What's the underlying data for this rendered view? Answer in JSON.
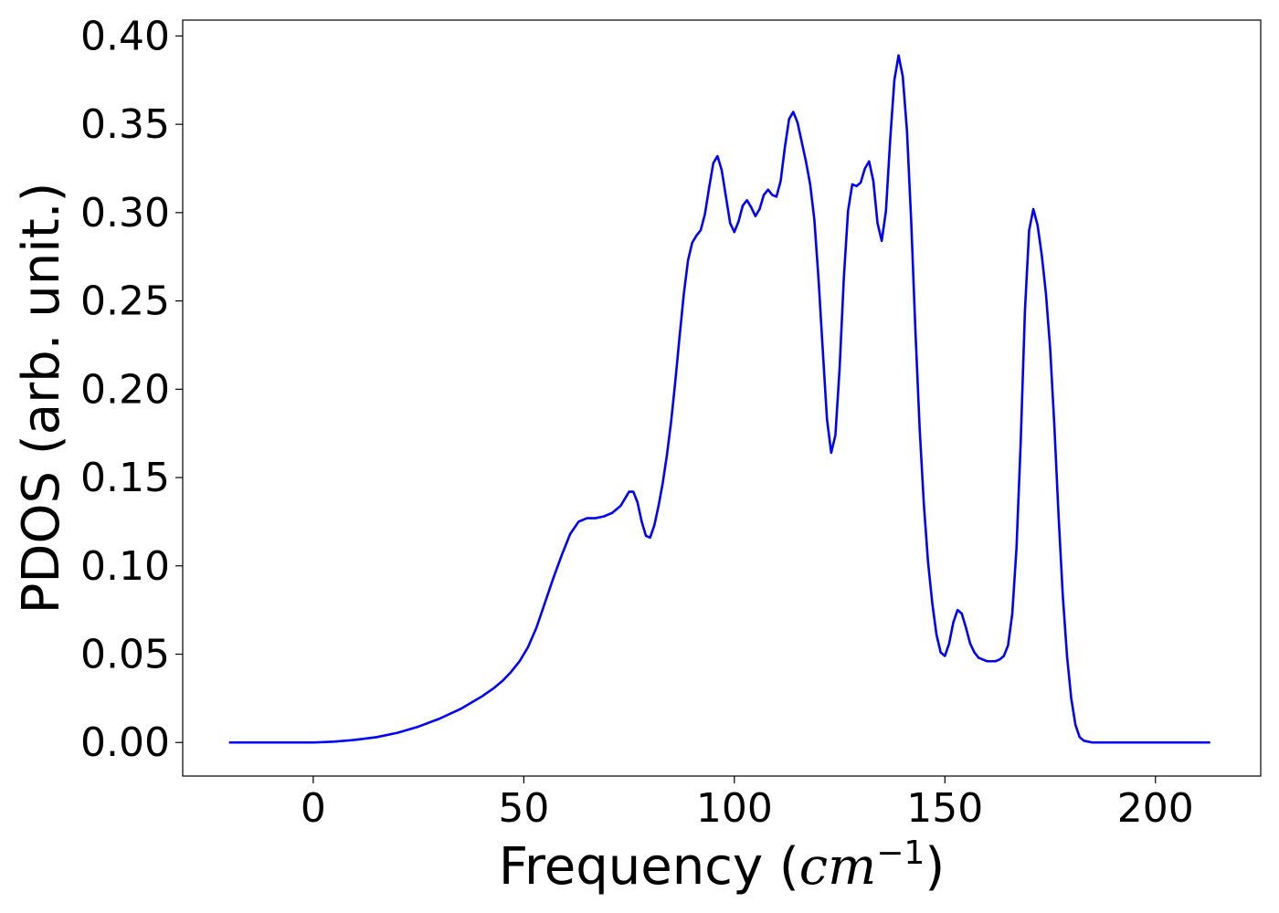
{
  "chart_data": {
    "type": "line",
    "title": "",
    "xlabel": "Frequency (",
    "xlabel_math": "cm",
    "xlabel_sup": "−1",
    "xlabel_close": ")",
    "ylabel": "PDOS (arb. unit.)",
    "xlim": [
      -31,
      225
    ],
    "ylim": [
      -0.019,
      0.409
    ],
    "xticks": [
      0,
      50,
      100,
      150,
      200
    ],
    "xtick_labels": [
      "0",
      "50",
      "100",
      "150",
      "200"
    ],
    "yticks": [
      0.0,
      0.05,
      0.1,
      0.15,
      0.2,
      0.25,
      0.3,
      0.35,
      0.4
    ],
    "ytick_labels": [
      "0.00",
      "0.05",
      "0.10",
      "0.15",
      "0.20",
      "0.25",
      "0.30",
      "0.35",
      "0.40"
    ],
    "grid": false,
    "series": [
      {
        "color": "#0000ff",
        "points": [
          [
            -20,
            0.0
          ],
          [
            0,
            0.0
          ],
          [
            5,
            0.0005
          ],
          [
            10,
            0.0015
          ],
          [
            15,
            0.003
          ],
          [
            20,
            0.0055
          ],
          [
            25,
            0.009
          ],
          [
            30,
            0.0135
          ],
          [
            35,
            0.019
          ],
          [
            40,
            0.026
          ],
          [
            43,
            0.031
          ],
          [
            45,
            0.035
          ],
          [
            47,
            0.04
          ],
          [
            49,
            0.046
          ],
          [
            51,
            0.054
          ],
          [
            53,
            0.065
          ],
          [
            55,
            0.079
          ],
          [
            57,
            0.093
          ],
          [
            59,
            0.106
          ],
          [
            61,
            0.118
          ],
          [
            63,
            0.125
          ],
          [
            65,
            0.127
          ],
          [
            67,
            0.127
          ],
          [
            69,
            0.128
          ],
          [
            71,
            0.13
          ],
          [
            73,
            0.134
          ],
          [
            75,
            0.142
          ],
          [
            76,
            0.142
          ],
          [
            77,
            0.136
          ],
          [
            78,
            0.125
          ],
          [
            79,
            0.117
          ],
          [
            80,
            0.116
          ],
          [
            81,
            0.123
          ],
          [
            82,
            0.134
          ],
          [
            83,
            0.147
          ],
          [
            84,
            0.163
          ],
          [
            85,
            0.182
          ],
          [
            86,
            0.205
          ],
          [
            87,
            0.23
          ],
          [
            88,
            0.254
          ],
          [
            89,
            0.273
          ],
          [
            90,
            0.283
          ],
          [
            91,
            0.287
          ],
          [
            92,
            0.29
          ],
          [
            93,
            0.299
          ],
          [
            94,
            0.314
          ],
          [
            95,
            0.328
          ],
          [
            96,
            0.332
          ],
          [
            97,
            0.324
          ],
          [
            98,
            0.309
          ],
          [
            99,
            0.294
          ],
          [
            100,
            0.289
          ],
          [
            101,
            0.295
          ],
          [
            102,
            0.304
          ],
          [
            103,
            0.307
          ],
          [
            104,
            0.303
          ],
          [
            105,
            0.298
          ],
          [
            106,
            0.302
          ],
          [
            107,
            0.31
          ],
          [
            108,
            0.313
          ],
          [
            109,
            0.31
          ],
          [
            110,
            0.309
          ],
          [
            111,
            0.318
          ],
          [
            112,
            0.337
          ],
          [
            113,
            0.353
          ],
          [
            114,
            0.357
          ],
          [
            115,
            0.351
          ],
          [
            116,
            0.34
          ],
          [
            117,
            0.329
          ],
          [
            118,
            0.316
          ],
          [
            119,
            0.296
          ],
          [
            120,
            0.262
          ],
          [
            121,
            0.222
          ],
          [
            122,
            0.183
          ],
          [
            123,
            0.164
          ],
          [
            124,
            0.174
          ],
          [
            125,
            0.212
          ],
          [
            126,
            0.263
          ],
          [
            127,
            0.301
          ],
          [
            128,
            0.316
          ],
          [
            129,
            0.315
          ],
          [
            130,
            0.317
          ],
          [
            131,
            0.325
          ],
          [
            132,
            0.329
          ],
          [
            133,
            0.318
          ],
          [
            134,
            0.294
          ],
          [
            135,
            0.284
          ],
          [
            136,
            0.301
          ],
          [
            137,
            0.341
          ],
          [
            138,
            0.375
          ],
          [
            139,
            0.389
          ],
          [
            140,
            0.377
          ],
          [
            141,
            0.346
          ],
          [
            142,
            0.295
          ],
          [
            143,
            0.233
          ],
          [
            144,
            0.178
          ],
          [
            145,
            0.135
          ],
          [
            146,
            0.102
          ],
          [
            147,
            0.079
          ],
          [
            148,
            0.061
          ],
          [
            149,
            0.051
          ],
          [
            150,
            0.049
          ],
          [
            151,
            0.056
          ],
          [
            152,
            0.068
          ],
          [
            153,
            0.075
          ],
          [
            154,
            0.073
          ],
          [
            155,
            0.065
          ],
          [
            156,
            0.056
          ],
          [
            157,
            0.051
          ],
          [
            158,
            0.048
          ],
          [
            159,
            0.047
          ],
          [
            160,
            0.046
          ],
          [
            161,
            0.046
          ],
          [
            162,
            0.046
          ],
          [
            163,
            0.047
          ],
          [
            164,
            0.049
          ],
          [
            165,
            0.055
          ],
          [
            166,
            0.073
          ],
          [
            167,
            0.11
          ],
          [
            168,
            0.17
          ],
          [
            169,
            0.244
          ],
          [
            170,
            0.29
          ],
          [
            171,
            0.302
          ],
          [
            172,
            0.293
          ],
          [
            173,
            0.276
          ],
          [
            174,
            0.254
          ],
          [
            175,
            0.223
          ],
          [
            176,
            0.179
          ],
          [
            177,
            0.128
          ],
          [
            178,
            0.083
          ],
          [
            179,
            0.049
          ],
          [
            180,
            0.025
          ],
          [
            181,
            0.01
          ],
          [
            182,
            0.003
          ],
          [
            183,
            0.001
          ],
          [
            185,
            0.0
          ],
          [
            200,
            0.0
          ],
          [
            213,
            0.0
          ]
        ]
      }
    ]
  }
}
